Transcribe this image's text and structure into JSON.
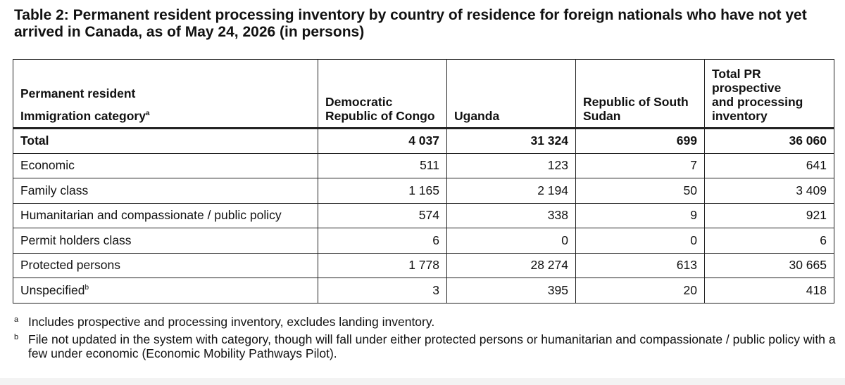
{
  "title": "Table 2: Permanent resident processing inventory by country of residence for foreign nationals who have not yet arrived in Canada, as of May 24, 2026 (in persons)",
  "header": {
    "category_line1": "Permanent resident",
    "category_line2": "Immigration category",
    "category_note_mark": "a",
    "col_drc_line1": "Democratic",
    "col_drc_line2": "Republic of Congo",
    "col_uganda": "Uganda",
    "col_south_sudan_line1": "Republic of South",
    "col_south_sudan_line2": "Sudan",
    "col_total_line1": "Total PR",
    "col_total_line2": "prospective",
    "col_total_line3": "and processing",
    "col_total_line4": "inventory"
  },
  "rows": [
    {
      "category": "Total",
      "note_mark": "",
      "drc": "4 037",
      "uganda": "31 324",
      "south_sudan": "699",
      "total": "36 060"
    },
    {
      "category": "Economic",
      "note_mark": "",
      "drc": "511",
      "uganda": "123",
      "south_sudan": "7",
      "total": "641"
    },
    {
      "category": "Family class",
      "note_mark": "",
      "drc": "1 165",
      "uganda": "2 194",
      "south_sudan": "50",
      "total": "3 409"
    },
    {
      "category": "Humanitarian and compassionate / public policy",
      "note_mark": "",
      "drc": "574",
      "uganda": "338",
      "south_sudan": "9",
      "total": "921"
    },
    {
      "category": "Permit holders class",
      "note_mark": "",
      "drc": "6",
      "uganda": "0",
      "south_sudan": "0",
      "total": "6"
    },
    {
      "category": "Protected persons",
      "note_mark": "",
      "drc": "1 778",
      "uganda": "28 274",
      "south_sudan": "613",
      "total": "30 665"
    },
    {
      "category": "Unspecified",
      "note_mark": "b",
      "drc": "3",
      "uganda": "395",
      "south_sudan": "20",
      "total": "418"
    }
  ],
  "footnotes": [
    {
      "mark": "a",
      "text": "Includes prospective and processing inventory, excludes landing inventory."
    },
    {
      "mark": "b",
      "text": "File not updated in the system with category, though will fall under either protected persons or humanitarian and compassionate / public policy with a few under economic (Economic Mobility Pathways Pilot)."
    }
  ]
}
